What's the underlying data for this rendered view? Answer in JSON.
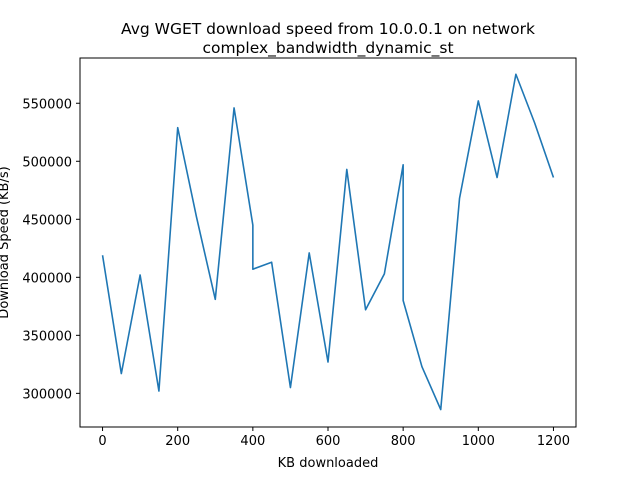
{
  "chart_data": {
    "type": "line",
    "title": "Avg WGET download speed from 10.0.0.1 on network\ncomplex_bandwidth_dynamic_st",
    "title_lines": [
      "Avg WGET download speed from 10.0.0.1 on network",
      "complex_bandwidth_dynamic_st"
    ],
    "xlabel": "KB downloaded",
    "ylabel": "Download Speed (KB/s)",
    "xlim": [
      -60,
      1260
    ],
    "ylim": [
      271000,
      589000
    ],
    "xticks": [
      0,
      200,
      400,
      600,
      800,
      1000,
      1200
    ],
    "yticks": [
      300000,
      350000,
      400000,
      450000,
      500000,
      550000
    ],
    "grid": false,
    "legend": "none",
    "series": [
      {
        "color": "#1f77b4",
        "x": [
          0,
          50,
          100,
          150,
          200,
          250,
          300,
          350,
          400,
          400,
          450,
          500,
          550,
          600,
          650,
          700,
          750,
          800,
          800,
          850,
          900,
          950,
          1000,
          1050,
          1100,
          1150,
          1200
        ],
        "y": [
          419000,
          317000,
          402000,
          302000,
          529000,
          452000,
          381000,
          546000,
          445000,
          407000,
          413000,
          305000,
          421000,
          327000,
          493000,
          372000,
          403000,
          497000,
          380000,
          323000,
          286000,
          468000,
          552000,
          486000,
          575000,
          533000,
          486000
        ]
      }
    ]
  }
}
